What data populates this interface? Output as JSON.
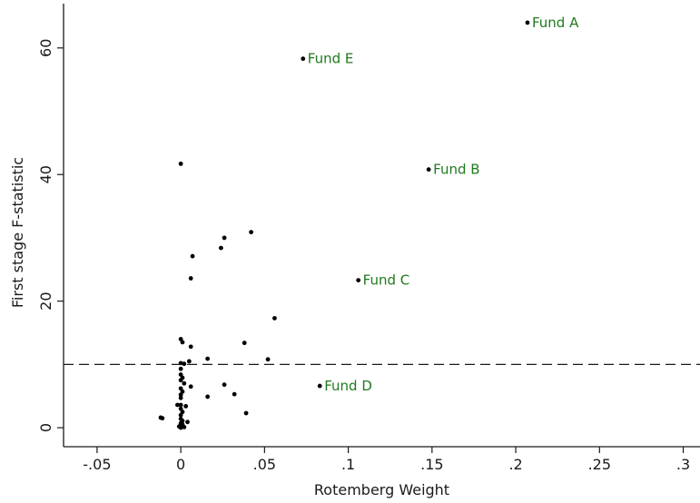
{
  "chart_data": {
    "type": "scatter",
    "xlabel": "Rotemberg Weight",
    "ylabel": "First stage F-statistic",
    "xlim": [
      -0.07,
      0.31
    ],
    "ylim": [
      -3,
      67
    ],
    "xticks": [
      {
        "value": -0.05,
        "label": "-.05"
      },
      {
        "value": 0,
        "label": "0"
      },
      {
        "value": 0.05,
        "label": ".05"
      },
      {
        "value": 0.1,
        "label": ".1"
      },
      {
        "value": 0.15,
        "label": ".15"
      },
      {
        "value": 0.2,
        "label": ".2"
      },
      {
        "value": 0.25,
        "label": ".25"
      },
      {
        "value": 0.3,
        "label": ".3"
      }
    ],
    "yticks": [
      {
        "value": 0,
        "label": "0"
      },
      {
        "value": 20,
        "label": "20"
      },
      {
        "value": 40,
        "label": "40"
      },
      {
        "value": 60,
        "label": "60"
      }
    ],
    "reference_line": {
      "y": 10,
      "style": "dashed"
    },
    "grid": false,
    "annotation_color": "#1e7a1e",
    "point_color": "#000000",
    "labeled_points": [
      {
        "label": "Fund A",
        "x": 0.207,
        "y": 64.0
      },
      {
        "label": "Fund E",
        "x": 0.073,
        "y": 58.3
      },
      {
        "label": "Fund B",
        "x": 0.148,
        "y": 40.8
      },
      {
        "label": "Fund C",
        "x": 0.106,
        "y": 23.3
      },
      {
        "label": "Fund D",
        "x": 0.083,
        "y": 6.6
      }
    ],
    "points": [
      {
        "x": 0.0,
        "y": 41.7
      },
      {
        "x": 0.042,
        "y": 30.9
      },
      {
        "x": 0.026,
        "y": 30.0
      },
      {
        "x": 0.024,
        "y": 28.4
      },
      {
        "x": 0.007,
        "y": 27.1
      },
      {
        "x": 0.006,
        "y": 23.6
      },
      {
        "x": 0.056,
        "y": 17.3
      },
      {
        "x": 0.0,
        "y": 14.0
      },
      {
        "x": 0.001,
        "y": 13.5
      },
      {
        "x": 0.038,
        "y": 13.4
      },
      {
        "x": 0.006,
        "y": 12.8
      },
      {
        "x": 0.016,
        "y": 10.9
      },
      {
        "x": 0.005,
        "y": 10.5
      },
      {
        "x": 0.052,
        "y": 10.8
      },
      {
        "x": 0.0,
        "y": 10.2
      },
      {
        "x": 0.002,
        "y": 10.1
      },
      {
        "x": 0.0,
        "y": 9.3
      },
      {
        "x": 0.0,
        "y": 8.4
      },
      {
        "x": 0.001,
        "y": 7.9
      },
      {
        "x": 0.0,
        "y": 7.5
      },
      {
        "x": 0.002,
        "y": 7.0
      },
      {
        "x": 0.026,
        "y": 6.8
      },
      {
        "x": 0.006,
        "y": 6.5
      },
      {
        "x": 0.0,
        "y": 6.2
      },
      {
        "x": 0.001,
        "y": 5.7
      },
      {
        "x": 0.0,
        "y": 5.2
      },
      {
        "x": 0.032,
        "y": 5.3
      },
      {
        "x": 0.016,
        "y": 4.9
      },
      {
        "x": 0.0,
        "y": 4.7
      },
      {
        "x": 0.0,
        "y": 3.6
      },
      {
        "x": 0.003,
        "y": 3.4
      },
      {
        "x": -0.002,
        "y": 3.6
      },
      {
        "x": 0.0,
        "y": 3.0
      },
      {
        "x": 0.039,
        "y": 2.3
      },
      {
        "x": 0.001,
        "y": 2.5
      },
      {
        "x": 0.0,
        "y": 2.0
      },
      {
        "x": -0.012,
        "y": 1.6
      },
      {
        "x": -0.011,
        "y": 1.5
      },
      {
        "x": 0.0,
        "y": 1.4
      },
      {
        "x": 0.001,
        "y": 1.1
      },
      {
        "x": 0.004,
        "y": 0.9
      },
      {
        "x": 0.0,
        "y": 0.7
      },
      {
        "x": 0.001,
        "y": 0.5
      },
      {
        "x": 0.0,
        "y": 0.3
      },
      {
        "x": -0.001,
        "y": 0.2
      },
      {
        "x": 0.002,
        "y": 0.1
      },
      {
        "x": 0.0,
        "y": 0.0
      }
    ]
  }
}
